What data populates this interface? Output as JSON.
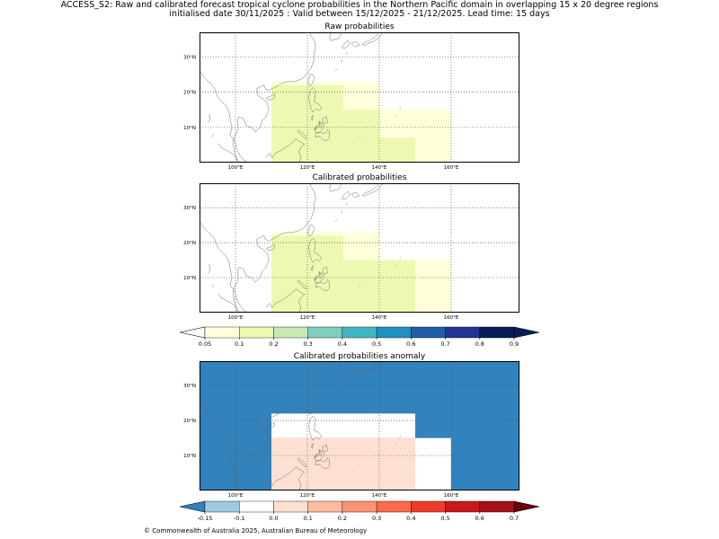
{
  "title_line1": "ACCESS_S2: Raw and calibrated forecast tropical cyclone probabilities in the Northern Pacific domain in overlapping 15 x 20 degree regions",
  "title_line2": "initialised date 30/11/2025 :  Valid between 15/12/2025 - 21/12/2025. Lead time: 15 days",
  "copyright": "© Commonwealth of Australia 2025, Australian Bureau of Meteorology",
  "map_extent": {
    "lon": [
      90,
      179
    ],
    "lat": [
      0,
      37
    ]
  },
  "lon_ticks": [
    {
      "v": 100,
      "t": "100°E"
    },
    {
      "v": 120,
      "t": "120°E"
    },
    {
      "v": 140,
      "t": "140°E"
    },
    {
      "v": 160,
      "t": "160°E"
    }
  ],
  "lat_ticks": [
    {
      "v": 10,
      "t": "10°N"
    },
    {
      "v": 20,
      "t": "20°N"
    },
    {
      "v": 30,
      "t": "30°N"
    }
  ],
  "panels": [
    {
      "key": "raw",
      "title": "Raw probabilities",
      "background": "#ffffff",
      "regions": [
        {
          "lon": [
            110,
            160
          ],
          "lat": [
            0,
            15
          ],
          "value": 0.05
        },
        {
          "lon": [
            110,
            140
          ],
          "lat": [
            0,
            23
          ],
          "value": 0.05
        },
        {
          "lon": [
            110,
            130
          ],
          "lat": [
            0,
            22
          ],
          "value": 0.1
        },
        {
          "lon": [
            110,
            140
          ],
          "lat": [
            5,
            15
          ],
          "value": 0.1
        },
        {
          "lon": [
            110,
            150
          ],
          "lat": [
            0,
            7
          ],
          "value": 0.1
        }
      ]
    },
    {
      "key": "calibrated",
      "title": "Calibrated probabilities",
      "background": "#ffffff",
      "regions": [
        {
          "lon": [
            110,
            160
          ],
          "lat": [
            0,
            15
          ],
          "value": 0.05
        },
        {
          "lon": [
            110,
            140
          ],
          "lat": [
            0,
            23
          ],
          "value": 0.05
        },
        {
          "lon": [
            110,
            130
          ],
          "lat": [
            0,
            22
          ],
          "value": 0.1
        },
        {
          "lon": [
            110,
            150
          ],
          "lat": [
            0,
            15
          ],
          "value": 0.1
        }
      ]
    },
    {
      "key": "anomaly",
      "title": "Calibrated probabilities anomaly",
      "background": "#3182bd",
      "regions": [
        {
          "lon": [
            110,
            150
          ],
          "lat": [
            15,
            22
          ],
          "value": -0.1
        },
        {
          "lon": [
            150,
            160
          ],
          "lat": [
            0,
            15
          ],
          "value": -0.1
        },
        {
          "lon": [
            110,
            150
          ],
          "lat": [
            0,
            15
          ],
          "value": 0.0
        }
      ]
    }
  ],
  "colorbars": [
    {
      "key": "prob",
      "ticks": [
        "0.05",
        "0.1",
        "0.2",
        "0.3",
        "0.4",
        "0.5",
        "0.6",
        "0.7",
        "0.8",
        "0.9"
      ],
      "under_color": "#ffffff",
      "over_color": "#081d58",
      "colors": [
        "#ffffd9",
        "#edf8b1",
        "#c7e9b4",
        "#7fcdbb",
        "#41b6c4",
        "#1d91c0",
        "#225ea8",
        "#253494",
        "#081d58"
      ]
    },
    {
      "key": "anom",
      "ticks": [
        "-0.15",
        "-0.1",
        "0.0",
        "0.1",
        "0.2",
        "0.3",
        "0.4",
        "0.5",
        "0.6",
        "0.7"
      ],
      "under_color": "#3182bd",
      "over_color": "#67000d",
      "colors": [
        "#9ecae1",
        "#ffffff",
        "#fee0d2",
        "#fcbba1",
        "#fc9272",
        "#fb6a4a",
        "#ef3b2c",
        "#cb181d",
        "#a50f15"
      ]
    }
  ]
}
